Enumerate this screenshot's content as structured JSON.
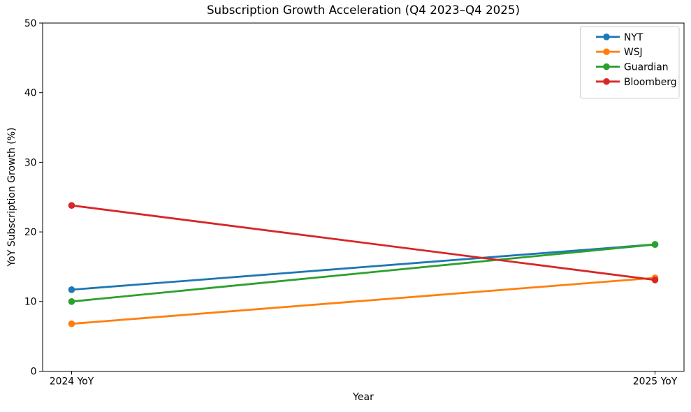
{
  "chart_data": {
    "type": "line",
    "title": "Subscription Growth Acceleration (Q4 2023–Q4 2025)",
    "xlabel": "Year",
    "ylabel": "YoY Subscription Growth (%)",
    "categories": [
      "2024 YoY",
      "2025 YoY"
    ],
    "y_ticks": [
      0,
      10,
      20,
      30,
      40,
      50
    ],
    "ylim": [
      0,
      50
    ],
    "grid": false,
    "legend_position": "upper-right",
    "series": [
      {
        "name": "NYT",
        "color": "#1f77b4",
        "values": [
          11.7,
          18.2
        ]
      },
      {
        "name": "WSJ",
        "color": "#ff7f0e",
        "values": [
          6.8,
          13.4
        ]
      },
      {
        "name": "Guardian",
        "color": "#2ca02c",
        "values": [
          10.0,
          18.2
        ]
      },
      {
        "name": "Bloomberg",
        "color": "#d62728",
        "values": [
          23.8,
          13.1
        ]
      }
    ],
    "colors": {
      "background": "#ffffff",
      "text": "#000000",
      "spine": "#000000",
      "legend_border": "#cccccc",
      "legend_background": "#ffffff"
    }
  }
}
